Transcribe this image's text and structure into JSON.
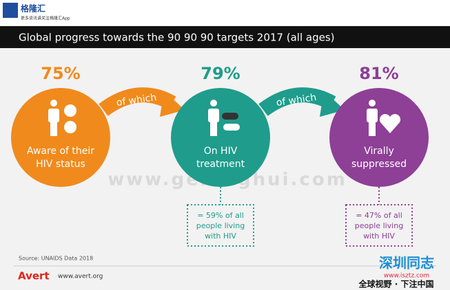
{
  "header": {
    "logo": "格隆汇",
    "logo_sub": "更多资讯请关注格隆汇App"
  },
  "title": "Global progress towards the 90 90 90 targets 2017 (all ages)",
  "steps": [
    {
      "percent": "75%",
      "label": [
        "Aware of their",
        "HIV status"
      ]
    },
    {
      "percent": "79%",
      "label": [
        "On HIV",
        "treatment"
      ]
    },
    {
      "percent": "81%",
      "label": [
        "Virally",
        "suppressed"
      ]
    }
  ],
  "arrows": [
    "of which",
    "of which"
  ],
  "notes": [
    [
      "= 59% of all",
      "people living",
      "with HIV"
    ],
    [
      "= 47% of all",
      "people living",
      "with HIV"
    ]
  ],
  "source": "Source: UNAIDS Data 2018",
  "footer": {
    "brand": "Avert",
    "url": "www.avert.org"
  },
  "watermarks": {
    "center": "www.gelonghui.com",
    "corner_title": "深圳同志",
    "corner_url": "www.isztz.com",
    "corner_slogan": "全球视野 · 下注中国"
  }
}
